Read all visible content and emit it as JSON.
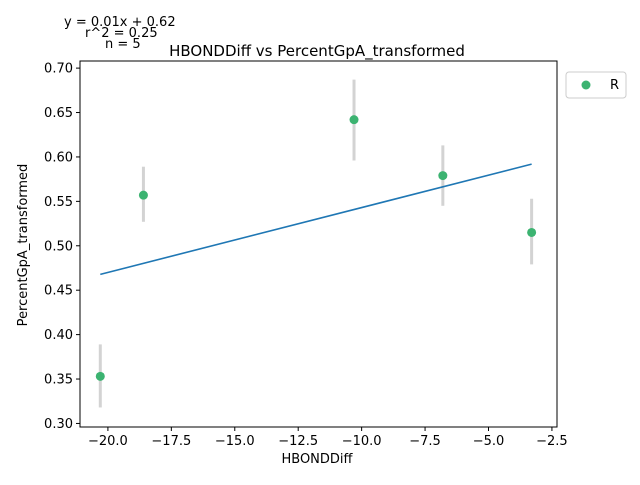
{
  "chart_data": {
    "type": "scatter",
    "title": "HBONDDiff vs PercentGpA_transformed",
    "xlabel": "HBONDDiff",
    "ylabel": "PercentGpA_transformed",
    "xlim": [
      -21.1,
      -2.3
    ],
    "ylim": [
      0.296,
      0.708
    ],
    "x_ticks": [
      -20.0,
      -17.5,
      -15.0,
      -12.5,
      -10.0,
      -7.5,
      -5.0,
      -2.5
    ],
    "x_tick_labels": [
      "−20.0",
      "−17.5",
      "−15.0",
      "−12.5",
      "−10.0",
      "−7.5",
      "−5.0",
      "−2.5"
    ],
    "y_ticks": [
      0.3,
      0.35,
      0.4,
      0.45,
      0.5,
      0.55,
      0.6,
      0.65,
      0.7
    ],
    "y_tick_labels": [
      "0.30",
      "0.35",
      "0.40",
      "0.45",
      "0.50",
      "0.55",
      "0.60",
      "0.65",
      "0.70"
    ],
    "grid": false,
    "legend_position": "outside-top-right",
    "series": [
      {
        "name": "R",
        "color": "#3cb371",
        "points": [
          {
            "x": -20.3,
            "y": 0.353,
            "err_low": 0.318,
            "err_high": 0.389
          },
          {
            "x": -18.6,
            "y": 0.557,
            "err_low": 0.527,
            "err_high": 0.589
          },
          {
            "x": -10.3,
            "y": 0.642,
            "err_low": 0.596,
            "err_high": 0.687
          },
          {
            "x": -6.8,
            "y": 0.579,
            "err_low": 0.545,
            "err_high": 0.613
          },
          {
            "x": -3.3,
            "y": 0.515,
            "err_low": 0.479,
            "err_high": 0.553
          }
        ]
      }
    ],
    "error_bar_color": "#d3d3d3",
    "fit_line": {
      "color": "#1f77b4",
      "x_start": -20.3,
      "x_end": -3.3,
      "slope": 0.0073,
      "intercept": 0.616
    },
    "annotations": {
      "equation": "y = 0.01x + 0.62",
      "r2": "r^2 = 0.25",
      "n": "n = 5"
    }
  }
}
